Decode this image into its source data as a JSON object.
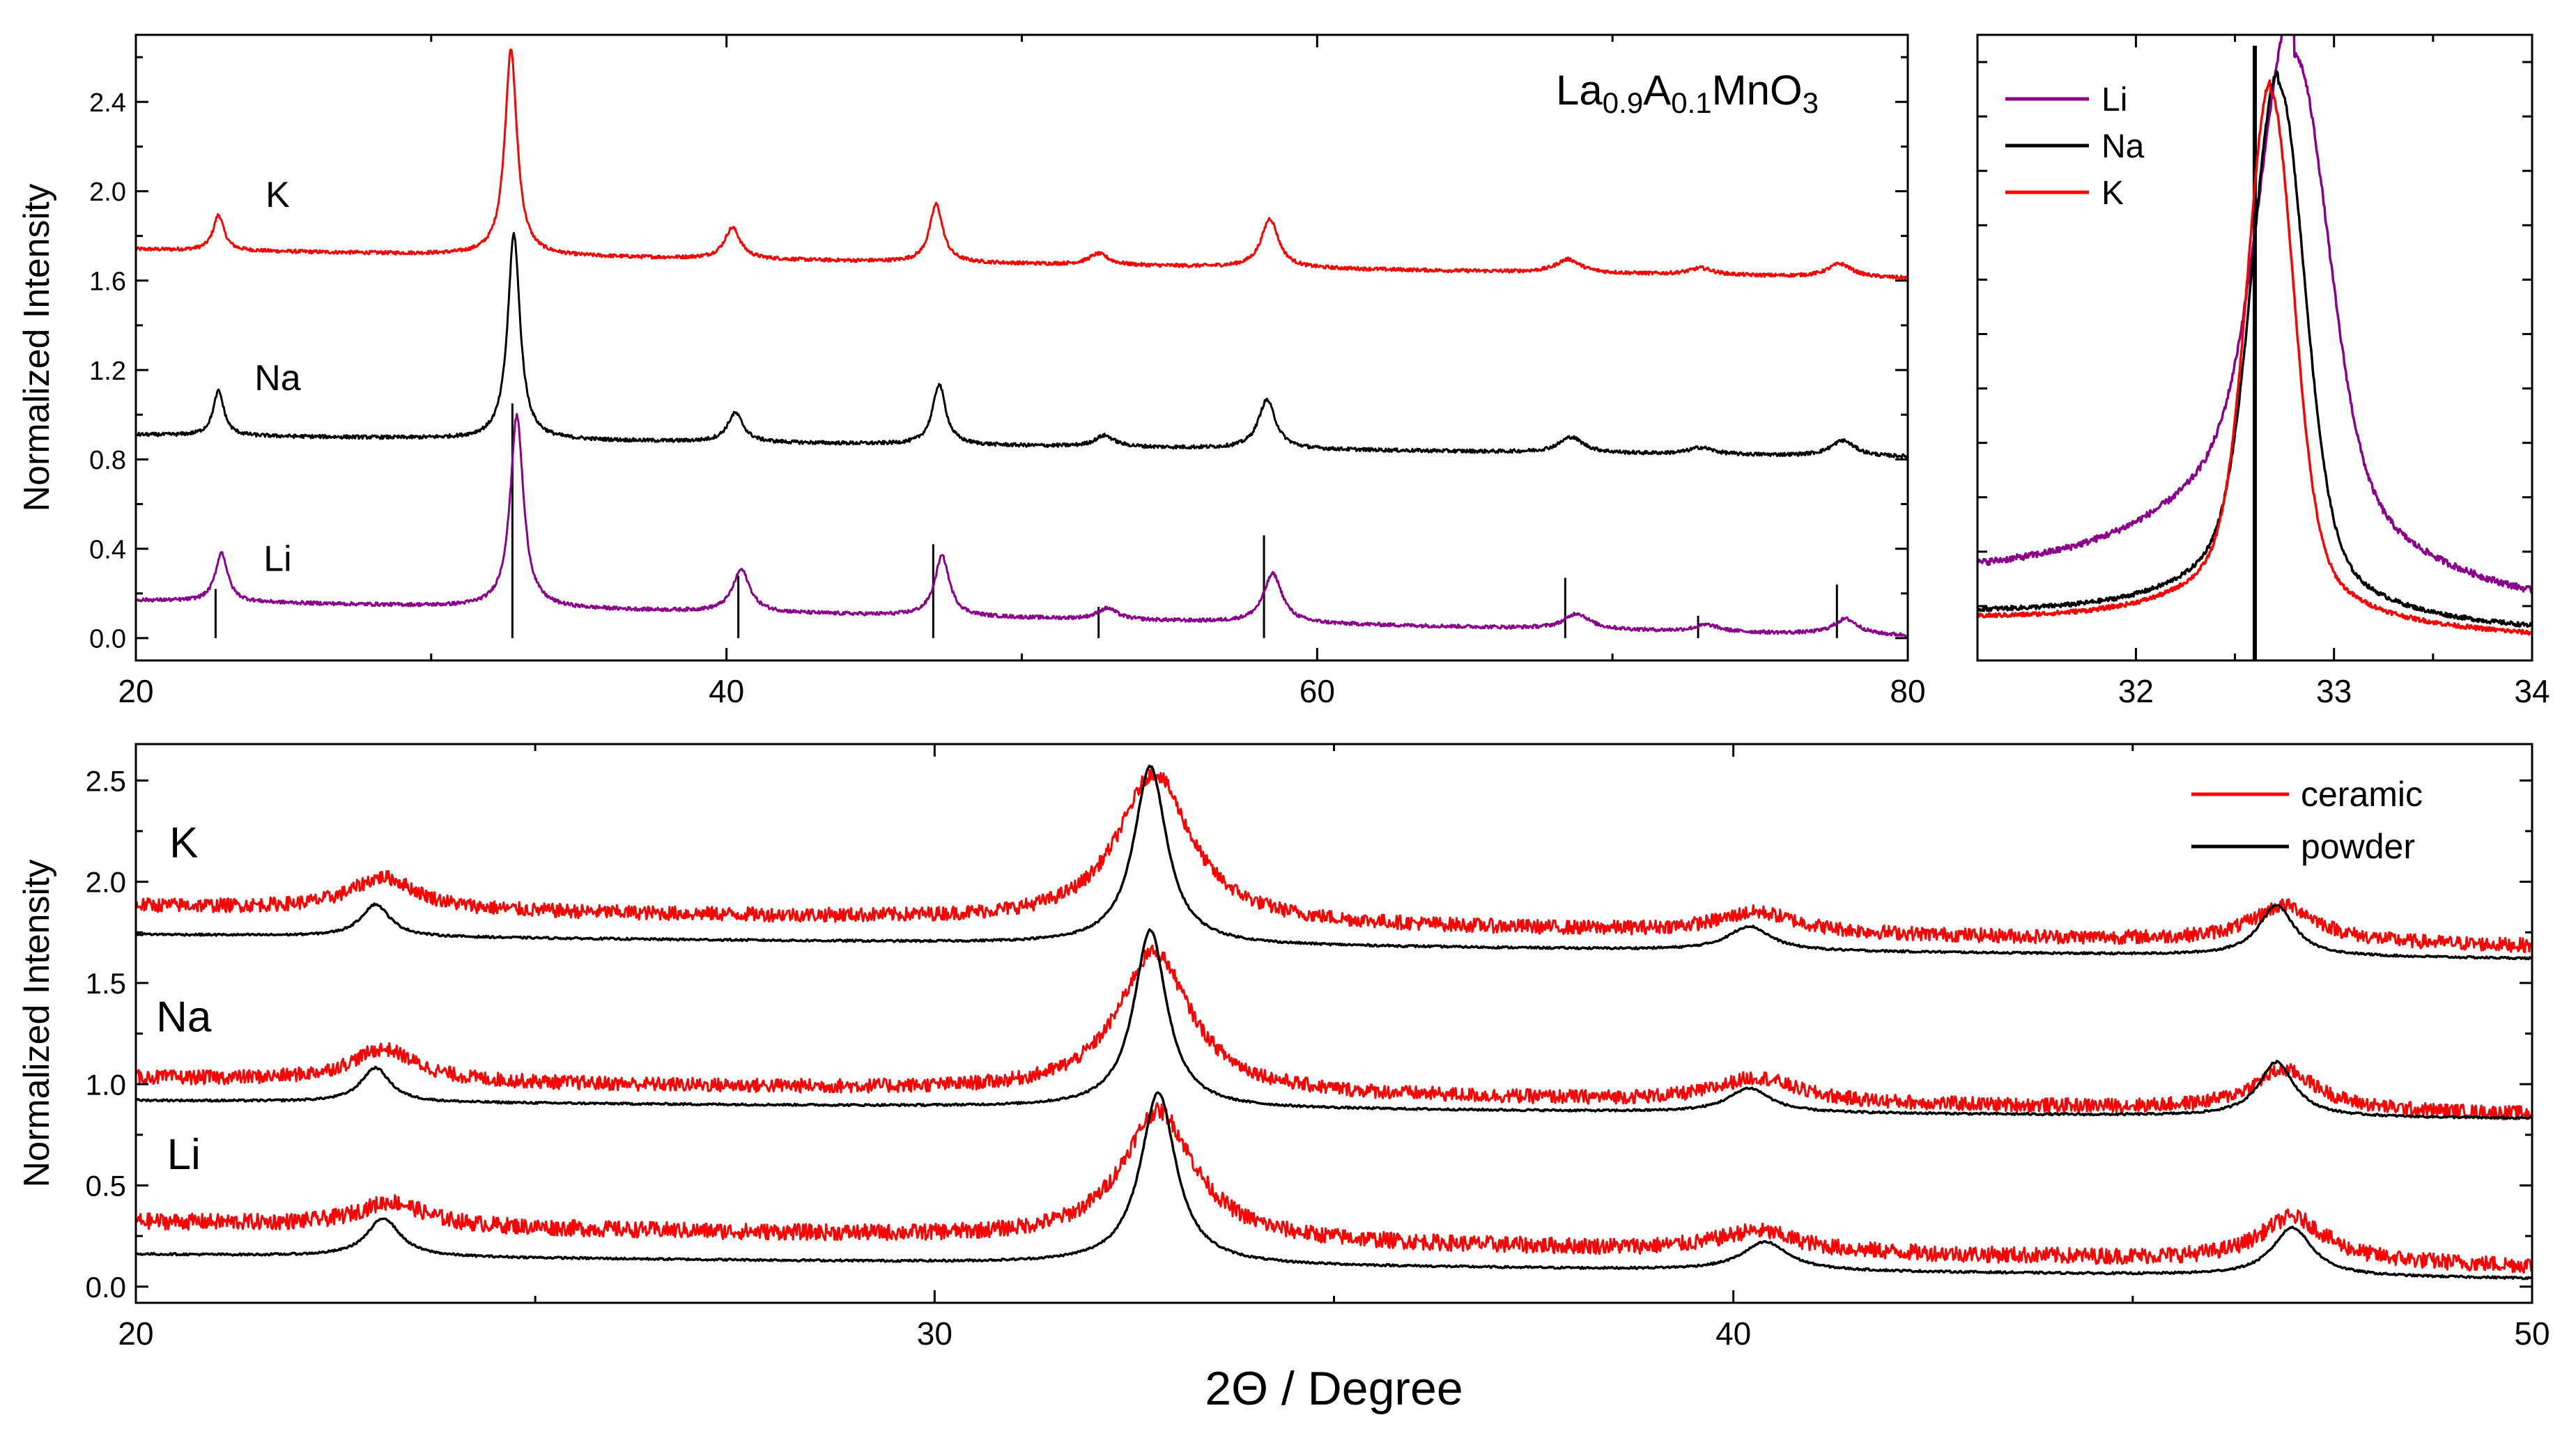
{
  "colors": {
    "red": "#ff0000",
    "black": "#000000",
    "purple": "#8b008b"
  },
  "chart_data": [
    {
      "id": "top-left",
      "type": "line",
      "title_parts": [
        {
          "t": "La",
          "sub": false
        },
        {
          "t": "0.9",
          "sub": true
        },
        {
          "t": "A",
          "sub": false
        },
        {
          "t": "0.1",
          "sub": true
        },
        {
          "t": "MnO",
          "sub": false
        },
        {
          "t": "3",
          "sub": true
        }
      ],
      "ylabel": "Normalized Intensity",
      "xlabel": "",
      "xlim": [
        20,
        80
      ],
      "ylim": [
        -0.1,
        2.7
      ],
      "xticks": [
        20,
        40,
        60,
        80
      ],
      "yticks": [
        0.0,
        0.4,
        0.8,
        1.2,
        1.6,
        2.0,
        2.4
      ],
      "series": [
        {
          "name": "K",
          "color": "#ff0000",
          "label_at": [
            24.8,
            1.93
          ],
          "baseline": [
            1.74,
            1.61
          ],
          "noise": 0.008,
          "peaks": [
            [
              22.8,
              0.16,
              0.22
            ],
            [
              32.7,
              0.92,
              0.25
            ],
            [
              40.2,
              0.14,
              0.32
            ],
            [
              47.1,
              0.26,
              0.27
            ],
            [
              52.6,
              0.05,
              0.4
            ],
            [
              58.4,
              0.22,
              0.35
            ],
            [
              68.5,
              0.06,
              0.5
            ],
            [
              73.0,
              0.03,
              0.5
            ],
            [
              77.7,
              0.06,
              0.5
            ]
          ]
        },
        {
          "name": "Na",
          "color": "#000000",
          "label_at": [
            24.8,
            1.11
          ],
          "baseline": [
            0.91,
            0.81
          ],
          "noise": 0.008,
          "peaks": [
            [
              22.8,
              0.2,
              0.22
            ],
            [
              32.8,
              0.92,
              0.25
            ],
            [
              40.3,
              0.13,
              0.32
            ],
            [
              47.2,
              0.27,
              0.27
            ],
            [
              52.8,
              0.05,
              0.4
            ],
            [
              58.3,
              0.22,
              0.35
            ],
            [
              68.6,
              0.07,
              0.5
            ],
            [
              73.0,
              0.03,
              0.5
            ],
            [
              77.8,
              0.07,
              0.5
            ]
          ]
        },
        {
          "name": "Li",
          "color": "#8b008b",
          "label_at": [
            24.8,
            0.3
          ],
          "baseline": [
            0.17,
            0.01
          ],
          "noise": 0.008,
          "peaks": [
            [
              22.9,
              0.22,
              0.25
            ],
            [
              32.9,
              0.86,
              0.27
            ],
            [
              40.5,
              0.19,
              0.35
            ],
            [
              47.3,
              0.27,
              0.3
            ],
            [
              52.9,
              0.05,
              0.4
            ],
            [
              58.5,
              0.22,
              0.38
            ],
            [
              68.8,
              0.07,
              0.5
            ],
            [
              73.2,
              0.03,
              0.5
            ],
            [
              77.9,
              0.07,
              0.5
            ]
          ]
        }
      ],
      "reference_lines": [
        [
          22.7,
          0.22
        ],
        [
          32.75,
          1.05
        ],
        [
          40.4,
          0.28
        ],
        [
          47.0,
          0.42
        ],
        [
          52.6,
          0.14
        ],
        [
          58.2,
          0.46
        ],
        [
          68.4,
          0.27
        ],
        [
          72.9,
          0.1
        ],
        [
          77.6,
          0.24
        ]
      ]
    },
    {
      "id": "top-right",
      "type": "line",
      "xlim": [
        31.2,
        34.0
      ],
      "ylim": [
        0.0,
        1.15
      ],
      "xticks": [
        32,
        33,
        34
      ],
      "legend": "top-left",
      "series": [
        {
          "name": "Li",
          "color": "#8b008b",
          "center": 32.8,
          "amp": 0.88,
          "width": 0.22,
          "shoulder_amp": 0.22,
          "shoulder_width": 0.75,
          "base_left": 0.13,
          "base_right": 0.08,
          "noise": 0.006
        },
        {
          "name": "Na",
          "color": "#000000",
          "center": 32.72,
          "amp": 0.96,
          "width": 0.17,
          "shoulder_amp": 0.06,
          "shoulder_width": 0.6,
          "base_left": 0.08,
          "base_right": 0.05,
          "noise": 0.004
        },
        {
          "name": "K",
          "color": "#ff0000",
          "center": 32.68,
          "amp": 0.96,
          "width": 0.15,
          "shoulder_amp": 0.05,
          "shoulder_width": 0.6,
          "base_left": 0.07,
          "base_right": 0.04,
          "noise": 0.004
        }
      ],
      "reference_lines": [
        [
          32.6,
          1.13
        ]
      ]
    },
    {
      "id": "bottom",
      "type": "line",
      "ylabel": "Normalized Intensity",
      "xlabel": "2Θ / Degree",
      "xlim": [
        20,
        50
      ],
      "ylim": [
        -0.08,
        2.68
      ],
      "xticks": [
        20,
        30,
        40,
        50
      ],
      "yticks": [
        0.0,
        0.5,
        1.0,
        1.5,
        2.0,
        2.5
      ],
      "legend": "top-right",
      "legend_entries": [
        {
          "name": "ceramic",
          "color": "#ff0000"
        },
        {
          "name": "powder",
          "color": "#000000"
        }
      ],
      "groups": [
        {
          "name": "K",
          "label_at": [
            20.6,
            2.12
          ],
          "powder": {
            "baseline": [
              1.74,
              1.62
            ],
            "peaks": [
              [
                23.0,
                0.16,
                0.22
              ],
              [
                32.7,
                0.88,
                0.25
              ],
              [
                40.2,
                0.12,
                0.32
              ],
              [
                46.8,
                0.25,
                0.27
              ]
            ],
            "noise": 0.005
          },
          "ceramic": {
            "baseline": [
              1.88,
              1.68
            ],
            "peaks": [
              [
                23.1,
                0.16,
                0.5
              ],
              [
                32.75,
                0.74,
                0.55
              ],
              [
                40.3,
                0.1,
                0.6
              ],
              [
                46.9,
                0.18,
                0.5
              ]
            ],
            "noise": 0.035
          }
        },
        {
          "name": "Na",
          "label_at": [
            20.6,
            1.26
          ],
          "powder": {
            "baseline": [
              0.92,
              0.83
            ],
            "peaks": [
              [
                23.0,
                0.17,
                0.22
              ],
              [
                32.7,
                0.88,
                0.25
              ],
              [
                40.2,
                0.12,
                0.32
              ],
              [
                46.8,
                0.27,
                0.27
              ]
            ],
            "noise": 0.005
          },
          "ceramic": {
            "baseline": [
              1.03,
              0.85
            ],
            "peaks": [
              [
                23.1,
                0.16,
                0.5
              ],
              [
                32.75,
                0.7,
                0.55
              ],
              [
                40.3,
                0.12,
                0.6
              ],
              [
                46.9,
                0.2,
                0.5
              ]
            ],
            "noise": 0.035
          }
        },
        {
          "name": "Li",
          "label_at": [
            20.6,
            0.58
          ],
          "powder": {
            "baseline": [
              0.16,
              0.04
            ],
            "peaks": [
              [
                23.1,
                0.19,
                0.25
              ],
              [
                32.8,
                0.85,
                0.27
              ],
              [
                40.4,
                0.14,
                0.35
              ],
              [
                47.0,
                0.24,
                0.3
              ]
            ],
            "noise": 0.005
          },
          "ceramic": {
            "baseline": [
              0.32,
              0.1
            ],
            "peaks": [
              [
                23.2,
                0.12,
                0.5
              ],
              [
                32.8,
                0.64,
                0.55
              ],
              [
                40.3,
                0.1,
                0.6
              ],
              [
                47.0,
                0.22,
                0.5
              ]
            ],
            "noise": 0.04
          }
        }
      ]
    }
  ]
}
